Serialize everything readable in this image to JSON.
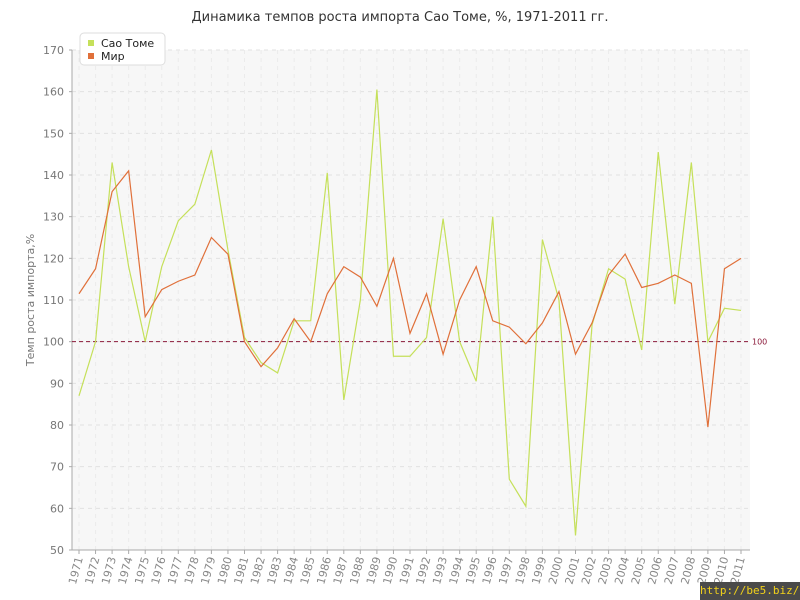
{
  "chart_data": {
    "type": "line",
    "title": "Динамика темпов роста импорта Сао Томе, %, 1971-2011 гг.",
    "xlabel": "",
    "ylabel": "Темп роста импорта,%",
    "ylim": [
      50,
      170
    ],
    "yticks": [
      50,
      60,
      70,
      80,
      90,
      100,
      110,
      120,
      130,
      140,
      150,
      160,
      170
    ],
    "grid": true,
    "legend_position": "top-left",
    "categories": [
      "1971",
      "1972",
      "1973",
      "1974",
      "1975",
      "1976",
      "1977",
      "1978",
      "1979",
      "1980",
      "1981",
      "1982",
      "1983",
      "1984",
      "1985",
      "1986",
      "1987",
      "1988",
      "1989",
      "1990",
      "1991",
      "1992",
      "1993",
      "1994",
      "1995",
      "1996",
      "1997",
      "1998",
      "1999",
      "2000",
      "2001",
      "2002",
      "2003",
      "2004",
      "2005",
      "2006",
      "2007",
      "2008",
      "2009",
      "2010",
      "2011"
    ],
    "series": [
      {
        "name": "Сао Томе",
        "color": "#c5e05a",
        "values": [
          87,
          100,
          143,
          118,
          100,
          118,
          129,
          133,
          146,
          122,
          101,
          95,
          92.5,
          105,
          105,
          140.5,
          86,
          110,
          160.5,
          96.5,
          96.5,
          101,
          129.5,
          100,
          90.5,
          130,
          67,
          60.5,
          124.5,
          110,
          53.5,
          104,
          117.5,
          115,
          98,
          145.5,
          109,
          143,
          100,
          108,
          107.5
        ]
      },
      {
        "name": "Мир",
        "color": "#e0703a",
        "values": [
          111.5,
          117.5,
          136,
          141,
          106,
          112.5,
          114.5,
          116,
          125,
          121,
          100,
          94,
          98.5,
          105.5,
          100,
          111.5,
          118,
          115.5,
          108.5,
          120,
          102,
          111.5,
          97,
          110,
          118,
          105,
          103.5,
          99.5,
          104.5,
          112,
          97,
          104.5,
          116,
          121,
          113,
          114,
          116,
          114,
          79.5,
          117.5,
          120
        ]
      }
    ],
    "reference_line": {
      "value": 100,
      "label": "100",
      "color": "#8b1a3a"
    }
  },
  "watermark": "http://be5.biz/"
}
